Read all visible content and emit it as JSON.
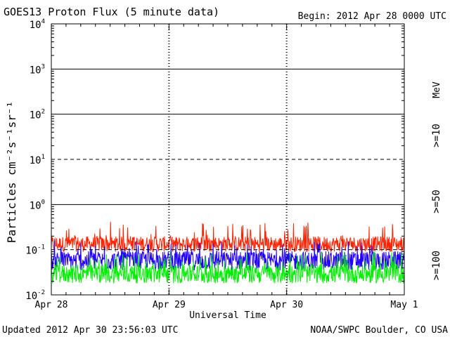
{
  "header": {
    "title": "GOES13 Proton Flux (5 minute data)",
    "begin": "Begin: 2012 Apr 28 0000 UTC"
  },
  "footer": {
    "updated": "Updated 2012 Apr 30 23:56:03 UTC",
    "credit": "NOAA/SWPC Boulder, CO USA"
  },
  "chart_data": {
    "type": "line",
    "ylabel": "Particles cm⁻²s⁻¹sr⁻¹",
    "xlabel": "Universal Time",
    "x_ticks": [
      "Apr 28",
      "Apr 29",
      "Apr 30",
      "May 1"
    ],
    "y_ticks": [
      {
        "base": "10",
        "exp": "4"
      },
      {
        "base": "10",
        "exp": "3"
      },
      {
        "base": "10",
        "exp": "2"
      },
      {
        "base": "10",
        "exp": "1"
      },
      {
        "base": "10",
        "exp": "0"
      },
      {
        "base": "10",
        "exp": "-1"
      },
      {
        "base": "10",
        "exp": "-2"
      }
    ],
    "y_scale": "log",
    "ylim": [
      0.01,
      10000
    ],
    "xlim_days": [
      0,
      3
    ],
    "units_label": "MeV",
    "series": [
      {
        "name": ">=10",
        "color": "#ff2200",
        "typical": 0.15,
        "min": 0.09,
        "max": 0.42
      },
      {
        "name": ">=50",
        "color": "#2200ff",
        "typical": 0.07,
        "min": 0.035,
        "max": 0.16
      },
      {
        "name": ">=100",
        "color": "#00ee00",
        "typical": 0.035,
        "min": 0.018,
        "max": 0.09
      }
    ],
    "dashed_levels": [
      10,
      0.1
    ],
    "solid_levels": [
      1000,
      100,
      1
    ]
  }
}
